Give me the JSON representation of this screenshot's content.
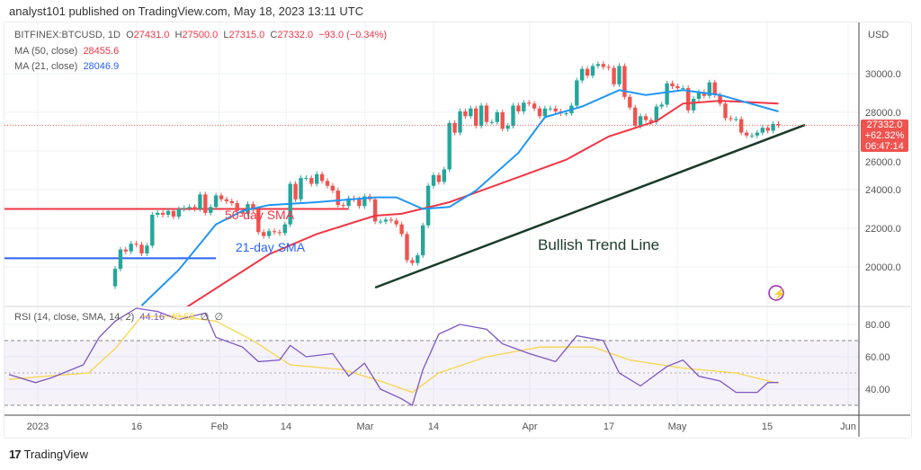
{
  "header": {
    "published": "analyst101 published on TradingView.com, May 18, 2023 13:11 UTC"
  },
  "legend": {
    "symbol": "BITFINEX:BTCUSD, 1D",
    "o_label": "O",
    "o": "27431.0",
    "h_label": "H",
    "h": "27500.0",
    "l_label": "L",
    "l": "27315.0",
    "c_label": "C",
    "c": "27332.0",
    "change": "−93.0 (−0.34%)",
    "ma50_label": "MA (50, close)",
    "ma50": "28455.6",
    "ma21_label": "MA (21, close)",
    "ma21": "28046.9",
    "rsi_label": "RSI (14, close, SMA, 14, 2)",
    "rsi": "44.16",
    "rsi_sma": "43.58",
    "na1": "∅",
    "na2": "∅"
  },
  "last_price": {
    "price": "27332.0",
    "change_pct": "+62.32%",
    "countdown": "06:47:14"
  },
  "annotations": {
    "ma50": "50-day SMA",
    "ma21": "21-day SMA",
    "trend": "Bullish Trend Line"
  },
  "footer": {
    "brand": "TradingView",
    "icon": "tradingview-logo-icon"
  },
  "colors": {
    "up": "#26a69a",
    "down": "#ef5350",
    "ma50": "#f23645",
    "ma21": "#2196f3",
    "rsi": "#7e57c2",
    "rsi_sma": "#f7d64a",
    "trend": "#1b3b2a"
  },
  "chart_data": {
    "type": "candlestick",
    "currency": "USD",
    "price_axis": {
      "ticks": [
        "30000.0",
        "28000.0",
        "26000.0",
        "24000.0",
        "22000.0",
        "20000.0"
      ],
      "ylim": [
        18700,
        32000
      ]
    },
    "rsi_axis": {
      "ticks": [
        "80.00",
        "60.00",
        "40.00"
      ],
      "bands": [
        70,
        30
      ]
    },
    "x_ticks": [
      "2023",
      "16",
      "Feb",
      "14",
      "Mar",
      "14",
      "Apr",
      "17",
      "May",
      "15",
      "Jun"
    ],
    "start_date": "2023-01-13",
    "closes": [
      19900,
      20900,
      20800,
      21200,
      21150,
      20700,
      21100,
      22700,
      22800,
      22700,
      22900,
      22600,
      23000,
      23050,
      23100,
      23000,
      23750,
      22800,
      23100,
      23700,
      23500,
      23400,
      23300,
      22900,
      22750,
      23250,
      22950,
      21800,
      21600,
      21850,
      21800,
      21750,
      22200,
      24300,
      23500,
      24600,
      24600,
      24300,
      24800,
      24450,
      24200,
      23950,
      23200,
      23150,
      23550,
      23500,
      23150,
      23650,
      23500,
      22350,
      22350,
      22450,
      22400,
      22200,
      21700,
      20350,
      20200,
      20600,
      22150,
      24200,
      24750,
      24400,
      25050,
      27450,
      26950,
      28050,
      27800,
      28200,
      27300,
      28350,
      27500,
      27500,
      28000,
      27150,
      27300,
      28350,
      28050,
      28500,
      28450,
      28200,
      27800,
      28200,
      28200,
      28050,
      27950,
      27950,
      28350,
      29650,
      30250,
      29900,
      30400,
      30500,
      30350,
      30300,
      29450,
      30400,
      28800,
      28250,
      27300,
      27800,
      27600,
      27500,
      28300,
      28400,
      29500,
      29350,
      29250,
      29250,
      28100,
      28700,
      29050,
      28850,
      29550,
      28900,
      28450,
      27700,
      27650,
      27650,
      26950,
      26800,
      26800,
      26950,
      27200,
      27050,
      27400,
      27332
    ],
    "ma50": [
      [
        "2023-01-23",
        17300
      ],
      [
        "2023-02-11",
        20650
      ],
      [
        "2023-02-20",
        21700
      ],
      [
        "2023-03-03",
        22650
      ],
      [
        "2023-03-08",
        22750
      ],
      [
        "2023-03-17",
        23350
      ],
      [
        "2023-03-31",
        24750
      ],
      [
        "2023-04-08",
        25550
      ],
      [
        "2023-04-16",
        26750
      ],
      [
        "2023-04-25",
        27550
      ],
      [
        "2023-04-30",
        28450
      ],
      [
        "2023-05-07",
        28600
      ],
      [
        "2023-05-18",
        28455.6
      ]
    ],
    "ma21": [
      [
        "2023-01-18",
        18000
      ],
      [
        "2023-01-25",
        19850
      ],
      [
        "2023-02-01",
        22200
      ],
      [
        "2023-02-06",
        22900
      ],
      [
        "2023-02-11",
        23200
      ],
      [
        "2023-02-20",
        23350
      ],
      [
        "2023-03-03",
        23600
      ],
      [
        "2023-03-07",
        23600
      ],
      [
        "2023-03-12",
        23000
      ],
      [
        "2023-03-17",
        23100
      ],
      [
        "2023-03-22",
        23950
      ],
      [
        "2023-03-30",
        25900
      ],
      [
        "2023-04-04",
        27750
      ],
      [
        "2023-04-11",
        28300
      ],
      [
        "2023-04-18",
        29150
      ],
      [
        "2023-04-23",
        28900
      ],
      [
        "2023-04-30",
        29150
      ],
      [
        "2023-05-07",
        28900
      ],
      [
        "2023-05-18",
        28046.9
      ]
    ],
    "rsi": [
      [
        "2022-12-24",
        49
      ],
      [
        "2022-12-29",
        44
      ],
      [
        "2023-01-01",
        47
      ],
      [
        "2023-01-07",
        55
      ],
      [
        "2023-01-10",
        72
      ],
      [
        "2023-01-13",
        82
      ],
      [
        "2023-01-17",
        90
      ],
      [
        "2023-01-21",
        88
      ],
      [
        "2023-01-25",
        83
      ],
      [
        "2023-01-30",
        87
      ],
      [
        "2023-02-01",
        72
      ],
      [
        "2023-02-06",
        66
      ],
      [
        "2023-02-09",
        57
      ],
      [
        "2023-02-13",
        58
      ],
      [
        "2023-02-15",
        67
      ],
      [
        "2023-02-18",
        60
      ],
      [
        "2023-02-23",
        62
      ],
      [
        "2023-02-26",
        48
      ],
      [
        "2023-03-01",
        56
      ],
      [
        "2023-03-04",
        40
      ],
      [
        "2023-03-08",
        34
      ],
      [
        "2023-03-10",
        30
      ],
      [
        "2023-03-12",
        52
      ],
      [
        "2023-03-15",
        74
      ],
      [
        "2023-03-19",
        80
      ],
      [
        "2023-03-24",
        77
      ],
      [
        "2023-03-27",
        68
      ],
      [
        "2023-04-01",
        62
      ],
      [
        "2023-04-06",
        57
      ],
      [
        "2023-04-10",
        73
      ],
      [
        "2023-04-15",
        70
      ],
      [
        "2023-04-18",
        50
      ],
      [
        "2023-04-22",
        42
      ],
      [
        "2023-04-27",
        54
      ],
      [
        "2023-04-30",
        58
      ],
      [
        "2023-05-03",
        48
      ],
      [
        "2023-05-07",
        45
      ],
      [
        "2023-05-10",
        38
      ],
      [
        "2023-05-14",
        38
      ],
      [
        "2023-05-16",
        44
      ],
      [
        "2023-05-18",
        44.16
      ]
    ],
    "rsi_sma": [
      [
        "2022-12-24",
        46
      ],
      [
        "2022-12-31",
        48
      ],
      [
        "2023-01-08",
        50
      ],
      [
        "2023-01-13",
        65
      ],
      [
        "2023-01-18",
        85
      ],
      [
        "2023-01-25",
        85
      ],
      [
        "2023-02-01",
        82
      ],
      [
        "2023-02-08",
        70
      ],
      [
        "2023-02-15",
        55
      ],
      [
        "2023-02-25",
        52
      ],
      [
        "2023-03-04",
        45
      ],
      [
        "2023-03-10",
        38
      ],
      [
        "2023-03-15",
        50
      ],
      [
        "2023-03-24",
        60
      ],
      [
        "2023-04-03",
        66
      ],
      [
        "2023-04-13",
        66
      ],
      [
        "2023-04-20",
        58
      ],
      [
        "2023-04-30",
        53
      ],
      [
        "2023-05-10",
        50
      ],
      [
        "2023-05-18",
        43.58
      ]
    ],
    "hlines": [
      {
        "price": 23000,
        "from": "2022-12-22",
        "to": "2023-02-26",
        "color": "#f23645"
      },
      {
        "price": 20450,
        "from": "2022-12-23",
        "to": "2023-02-01",
        "color": "#2962ff"
      }
    ],
    "trend_line": [
      [
        "2023-03-03",
        18930
      ],
      [
        "2023-05-23",
        27350
      ]
    ]
  }
}
